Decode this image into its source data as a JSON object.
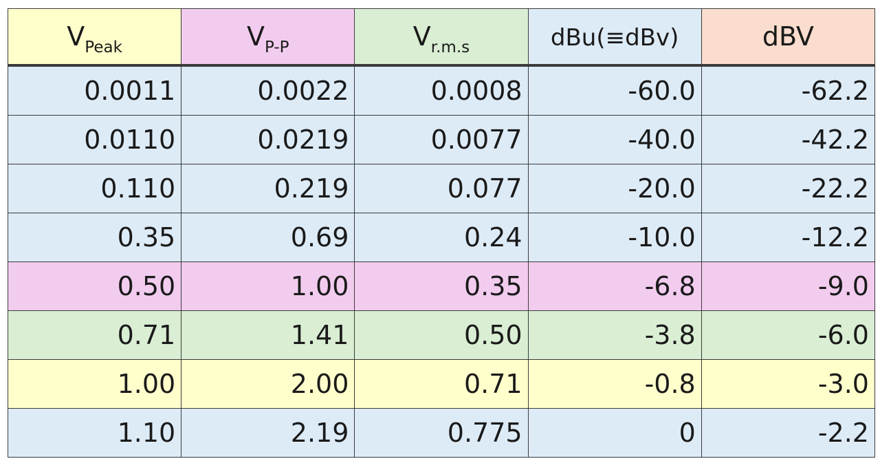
{
  "chart_data": {
    "type": "table",
    "columns": [
      {
        "main": "V",
        "sub": "Peak",
        "color": "#FFFFCC"
      },
      {
        "main": "V",
        "sub": "P-P",
        "color": "#F2CCEF"
      },
      {
        "main": "V",
        "sub": "r.m.s",
        "color": "#D9EED3"
      },
      {
        "main": "dBu(≡dBv)",
        "sub": "",
        "color": "#DDEBF7"
      },
      {
        "main": "dBV",
        "sub": "",
        "color": "#FADDCE"
      }
    ],
    "rows": [
      {
        "color": "#DDEBF7",
        "cells": [
          "0.0011",
          "0.0022",
          "0.0008",
          "-60.0",
          "-62.2"
        ]
      },
      {
        "color": "#DDEBF7",
        "cells": [
          "0.0110",
          "0.0219",
          "0.0077",
          "-40.0",
          "-42.2"
        ]
      },
      {
        "color": "#DDEBF7",
        "cells": [
          "0.110",
          "0.219",
          "0.077",
          "-20.0",
          "-22.2"
        ]
      },
      {
        "color": "#DDEBF7",
        "cells": [
          "0.35",
          "0.69",
          "0.24",
          "-10.0",
          "-12.2"
        ]
      },
      {
        "color": "#F2CCEF",
        "cells": [
          "0.50",
          "1.00",
          "0.35",
          "-6.8",
          "-9.0"
        ]
      },
      {
        "color": "#D9EED3",
        "cells": [
          "0.71",
          "1.41",
          "0.50",
          "-3.8",
          "-6.0"
        ]
      },
      {
        "color": "#FFFFCC",
        "cells": [
          "1.00",
          "2.00",
          "0.71",
          "-0.8",
          "-3.0"
        ]
      },
      {
        "color": "#DDEBF7",
        "cells": [
          "1.10",
          "2.19",
          "0.775",
          "0",
          "-2.2"
        ]
      }
    ]
  }
}
